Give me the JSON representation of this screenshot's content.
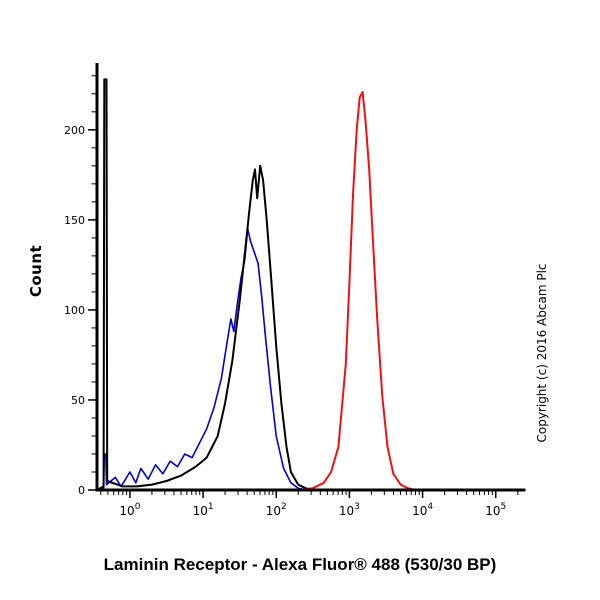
{
  "page": {
    "title": "Laminin Receptor - Alexa Fluor® 488 (530/30 BP)",
    "copyright": "Copyright (c) 2016 Abcam Plc"
  },
  "chart_data": {
    "type": "line",
    "subtype": "flow-cytometry-histogram",
    "title": "Laminin Receptor - Alexa Fluor® 488 (530/30 BP)",
    "xlabel": "",
    "ylabel": "Count",
    "x_scale": "log10",
    "xlog_range": [
      -0.45,
      5.4
    ],
    "ylim": [
      0,
      236
    ],
    "y_ticks": [
      0,
      50,
      100,
      150,
      200
    ],
    "x_tick_exponents": [
      0,
      1,
      2,
      3,
      4,
      5
    ],
    "grid": false,
    "legend": "none",
    "series": [
      {
        "name": "blue",
        "color": "#0000cd",
        "stroke_width": 1.6,
        "points": [
          [
            -0.45,
            0
          ],
          [
            -0.36,
            1
          ],
          [
            -0.35,
            20
          ],
          [
            -0.33,
            20
          ],
          [
            -0.32,
            3
          ],
          [
            -0.2,
            7
          ],
          [
            -0.12,
            2
          ],
          [
            0.0,
            10
          ],
          [
            0.08,
            4
          ],
          [
            0.15,
            12
          ],
          [
            0.25,
            6
          ],
          [
            0.35,
            14
          ],
          [
            0.45,
            9
          ],
          [
            0.55,
            16
          ],
          [
            0.65,
            13
          ],
          [
            0.75,
            20
          ],
          [
            0.85,
            18
          ],
          [
            0.95,
            26
          ],
          [
            1.05,
            34
          ],
          [
            1.15,
            46
          ],
          [
            1.25,
            62
          ],
          [
            1.32,
            80
          ],
          [
            1.38,
            95
          ],
          [
            1.42,
            88
          ],
          [
            1.47,
            104
          ],
          [
            1.52,
            118
          ],
          [
            1.57,
            128
          ],
          [
            1.61,
            145
          ],
          [
            1.65,
            138
          ],
          [
            1.7,
            132
          ],
          [
            1.75,
            126
          ],
          [
            1.8,
            108
          ],
          [
            1.85,
            86
          ],
          [
            1.92,
            58
          ],
          [
            2.0,
            30
          ],
          [
            2.1,
            12
          ],
          [
            2.2,
            4
          ],
          [
            2.3,
            1
          ],
          [
            2.4,
            0
          ],
          [
            5.4,
            0
          ]
        ]
      },
      {
        "name": "black",
        "color": "#000000",
        "stroke_width": 2,
        "points": [
          [
            -0.45,
            0
          ],
          [
            -0.36,
            2
          ],
          [
            -0.35,
            228
          ],
          [
            -0.32,
            228
          ],
          [
            -0.31,
            5
          ],
          [
            -0.1,
            2
          ],
          [
            0.1,
            2
          ],
          [
            0.3,
            3
          ],
          [
            0.5,
            5
          ],
          [
            0.7,
            8
          ],
          [
            0.9,
            13
          ],
          [
            1.05,
            18
          ],
          [
            1.2,
            30
          ],
          [
            1.3,
            48
          ],
          [
            1.4,
            72
          ],
          [
            1.5,
            105
          ],
          [
            1.58,
            135
          ],
          [
            1.64,
            158
          ],
          [
            1.68,
            172
          ],
          [
            1.71,
            178
          ],
          [
            1.74,
            162
          ],
          [
            1.78,
            180
          ],
          [
            1.82,
            172
          ],
          [
            1.87,
            150
          ],
          [
            1.93,
            118
          ],
          [
            2.0,
            80
          ],
          [
            2.07,
            48
          ],
          [
            2.14,
            24
          ],
          [
            2.2,
            10
          ],
          [
            2.3,
            3
          ],
          [
            2.4,
            1
          ],
          [
            2.5,
            0
          ],
          [
            5.4,
            0
          ]
        ]
      },
      {
        "name": "red",
        "color": "#ee1111",
        "stroke_width": 2,
        "points": [
          [
            -0.45,
            0
          ],
          [
            2.3,
            0
          ],
          [
            2.5,
            1
          ],
          [
            2.65,
            4
          ],
          [
            2.75,
            10
          ],
          [
            2.85,
            24
          ],
          [
            2.95,
            70
          ],
          [
            3.0,
            115
          ],
          [
            3.05,
            165
          ],
          [
            3.1,
            200
          ],
          [
            3.14,
            218
          ],
          [
            3.18,
            221
          ],
          [
            3.22,
            205
          ],
          [
            3.27,
            178
          ],
          [
            3.32,
            140
          ],
          [
            3.38,
            95
          ],
          [
            3.45,
            52
          ],
          [
            3.52,
            24
          ],
          [
            3.6,
            9
          ],
          [
            3.7,
            3
          ],
          [
            3.8,
            1
          ],
          [
            3.9,
            0
          ],
          [
            5.4,
            0
          ]
        ]
      }
    ]
  }
}
